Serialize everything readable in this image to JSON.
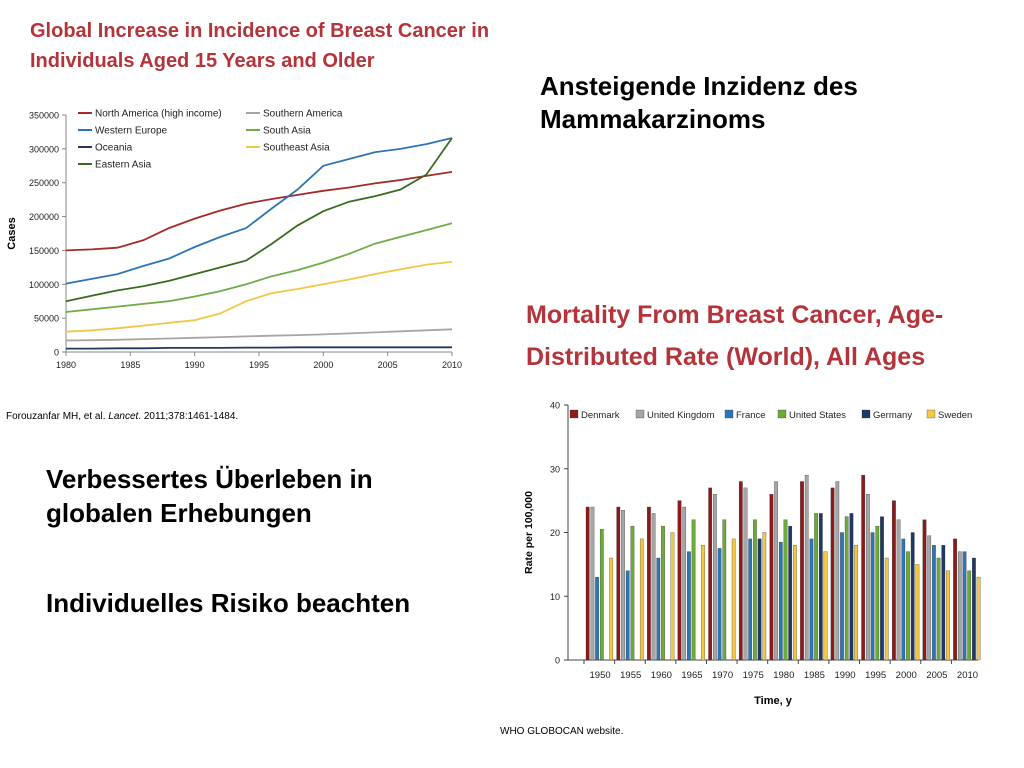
{
  "slide": {
    "heading": "Ansteigende Inzidenz des Mammakarzinoms",
    "survival_text": "Verbessertes Überleben in globalen Erhebungen",
    "risk_text": "Individuelles Risiko beachten"
  },
  "incidence": {
    "title": "Global Increase in Incidence of Breast Cancer in Individuals Aged 15 Years and Older",
    "source_prefix": "Forouzanfar MH, et al. ",
    "source_journal": "Lancet",
    "source_suffix": ". 2011;378:1461-1484."
  },
  "mortality": {
    "title": "Mortality From Breast Cancer, Age-Distributed Rate (World), All Ages",
    "source": "WHO GLOBOCAN website."
  },
  "chart_data": [
    {
      "type": "line",
      "title": "Global Increase in Incidence of Breast Cancer in Individuals Aged 15 Years and Older",
      "xlabel": "",
      "ylabel": "Cases",
      "xlim": [
        1980,
        2010
      ],
      "ylim": [
        0,
        350000
      ],
      "x_ticks": [
        1980,
        1985,
        1990,
        1995,
        2000,
        2005,
        2010
      ],
      "y_ticks": [
        0,
        50000,
        100000,
        150000,
        200000,
        250000,
        300000,
        350000
      ],
      "grid": false,
      "legend_position": "top-left",
      "x": [
        1980,
        1982,
        1984,
        1986,
        1988,
        1990,
        1992,
        1994,
        1996,
        1998,
        2000,
        2002,
        2004,
        2006,
        2008,
        2010
      ],
      "series": [
        {
          "name": "North America (high income)",
          "color": "#a52a2a",
          "values": [
            150000,
            151500,
            154000,
            165000,
            183000,
            197000,
            209000,
            219000,
            226000,
            232000,
            238000,
            243000,
            249000,
            254000,
            260000,
            266000
          ]
        },
        {
          "name": "Southern America",
          "color": "#a6a6a6",
          "values": [
            17000,
            17500,
            18000,
            19000,
            20000,
            21000,
            22000,
            23000,
            24000,
            25000,
            26000,
            27500,
            29000,
            30500,
            32000,
            33500
          ]
        },
        {
          "name": "Western Europe",
          "color": "#2e75b6",
          "values": [
            101000,
            108000,
            115000,
            127000,
            138000,
            155000,
            170000,
            183000,
            212000,
            240000,
            275000,
            285000,
            295000,
            300000,
            307000,
            316000
          ]
        },
        {
          "name": "South Asia",
          "color": "#70ad47",
          "values": [
            59000,
            63000,
            67000,
            71000,
            75000,
            82000,
            90000,
            100000,
            112000,
            121000,
            132000,
            145000,
            160000,
            170000,
            180000,
            190000
          ]
        },
        {
          "name": "Oceania",
          "color": "#1f3864",
          "values": [
            5000,
            5000,
            5500,
            5500,
            6000,
            6000,
            6000,
            6500,
            6500,
            7000,
            7000,
            7000,
            7000,
            7000,
            7000,
            7000
          ]
        },
        {
          "name": "Southeast Asia",
          "color": "#f2c744",
          "values": [
            30000,
            32000,
            35000,
            39000,
            43000,
            47000,
            57000,
            75000,
            87000,
            93000,
            100000,
            107000,
            115000,
            122000,
            129000,
            133000
          ]
        },
        {
          "name": "Eastern Asia",
          "color": "#3a6b1e",
          "values": [
            75000,
            83000,
            91000,
            97000,
            105000,
            115000,
            125000,
            135000,
            160000,
            187000,
            208000,
            222000,
            230000,
            240000,
            262000,
            316000
          ]
        }
      ]
    },
    {
      "type": "bar",
      "title": "Mortality From Breast Cancer, Age-Distributed Rate (World), All Ages",
      "xlabel": "Time, y",
      "ylabel": "Rate per 100,000",
      "ylim": [
        0,
        40
      ],
      "y_ticks": [
        0,
        10,
        20,
        30,
        40
      ],
      "grid": false,
      "legend_position": "top",
      "categories": [
        "1950",
        "1955",
        "1960",
        "1965",
        "1970",
        "1975",
        "1980",
        "1985",
        "1990",
        "1995",
        "2000",
        "2005",
        "2010"
      ],
      "series": [
        {
          "name": "Denmark",
          "color": "#8b1a1a",
          "values": [
            24,
            24,
            24,
            25,
            27,
            28,
            26,
            28,
            27,
            29,
            25,
            22,
            19
          ]
        },
        {
          "name": "United Kingdom",
          "color": "#a6a6a6",
          "values": [
            24,
            23.5,
            23,
            24,
            26,
            27,
            28,
            29,
            28,
            26,
            22,
            19.5,
            17
          ]
        },
        {
          "name": "France",
          "color": "#2e75b6",
          "values": [
            13,
            14,
            16,
            17,
            17.5,
            19,
            18.5,
            19,
            20,
            20,
            19,
            18,
            17
          ]
        },
        {
          "name": "United States",
          "color": "#6aab3a",
          "values": [
            20.5,
            21,
            21,
            22,
            22,
            22,
            22,
            23,
            22.5,
            21,
            17,
            16,
            14
          ]
        },
        {
          "name": "Germany",
          "color": "#1f3864",
          "values": [
            null,
            null,
            null,
            null,
            null,
            19,
            21,
            23,
            23,
            22.5,
            20,
            18,
            16
          ]
        },
        {
          "name": "Sweden",
          "color": "#f2c744",
          "values": [
            16,
            19,
            20,
            18,
            19,
            20,
            18,
            17,
            18,
            16,
            15,
            14,
            13
          ]
        }
      ]
    }
  ]
}
